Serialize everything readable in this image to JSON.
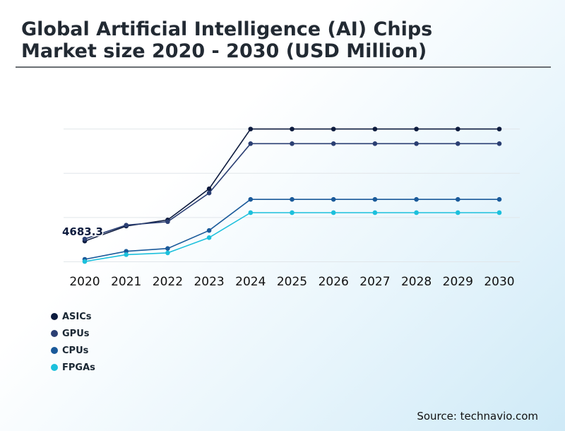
{
  "title": "Global Artificial Intelligence (AI) Chips Market size 2020 - 2030 (USD Million)",
  "source": "Source: technavio.com",
  "chart_data": {
    "type": "line",
    "title": "Global Artificial Intelligence (AI) Chips Market size 2020 - 2030 (USD Million)",
    "xlabel": "",
    "ylabel": "",
    "categories": [
      "2020",
      "2021",
      "2022",
      "2023",
      "2024",
      "2025",
      "2026",
      "2027",
      "2028",
      "2029",
      "2030"
    ],
    "ylim": [
      0,
      40000
    ],
    "gridlines": [
      0,
      10000,
      20000,
      30000
    ],
    "data_label": "4683.3",
    "grid": true,
    "legend_position": "bottom-left",
    "series": [
      {
        "name": "ASICs",
        "color": "#0d1b3e",
        "values": [
          4683.3,
          8070,
          9450,
          16500,
          30000,
          30000,
          30000,
          30000,
          30000,
          30000,
          30000
        ]
      },
      {
        "name": "GPUs",
        "color": "#2b3f73",
        "values": [
          5150,
          8280,
          9060,
          15540,
          26700,
          26700,
          26700,
          26700,
          26700,
          26700,
          26700
        ]
      },
      {
        "name": "CPUs",
        "color": "#1a5a9a",
        "values": [
          560,
          2370,
          3000,
          7080,
          14100,
          14100,
          14100,
          14100,
          14100,
          14100,
          14100
        ]
      },
      {
        "name": "FPGAs",
        "color": "#1cc0dc",
        "values": [
          60,
          1620,
          2010,
          5460,
          11100,
          11100,
          11100,
          11100,
          11100,
          11100,
          11100
        ]
      }
    ]
  }
}
